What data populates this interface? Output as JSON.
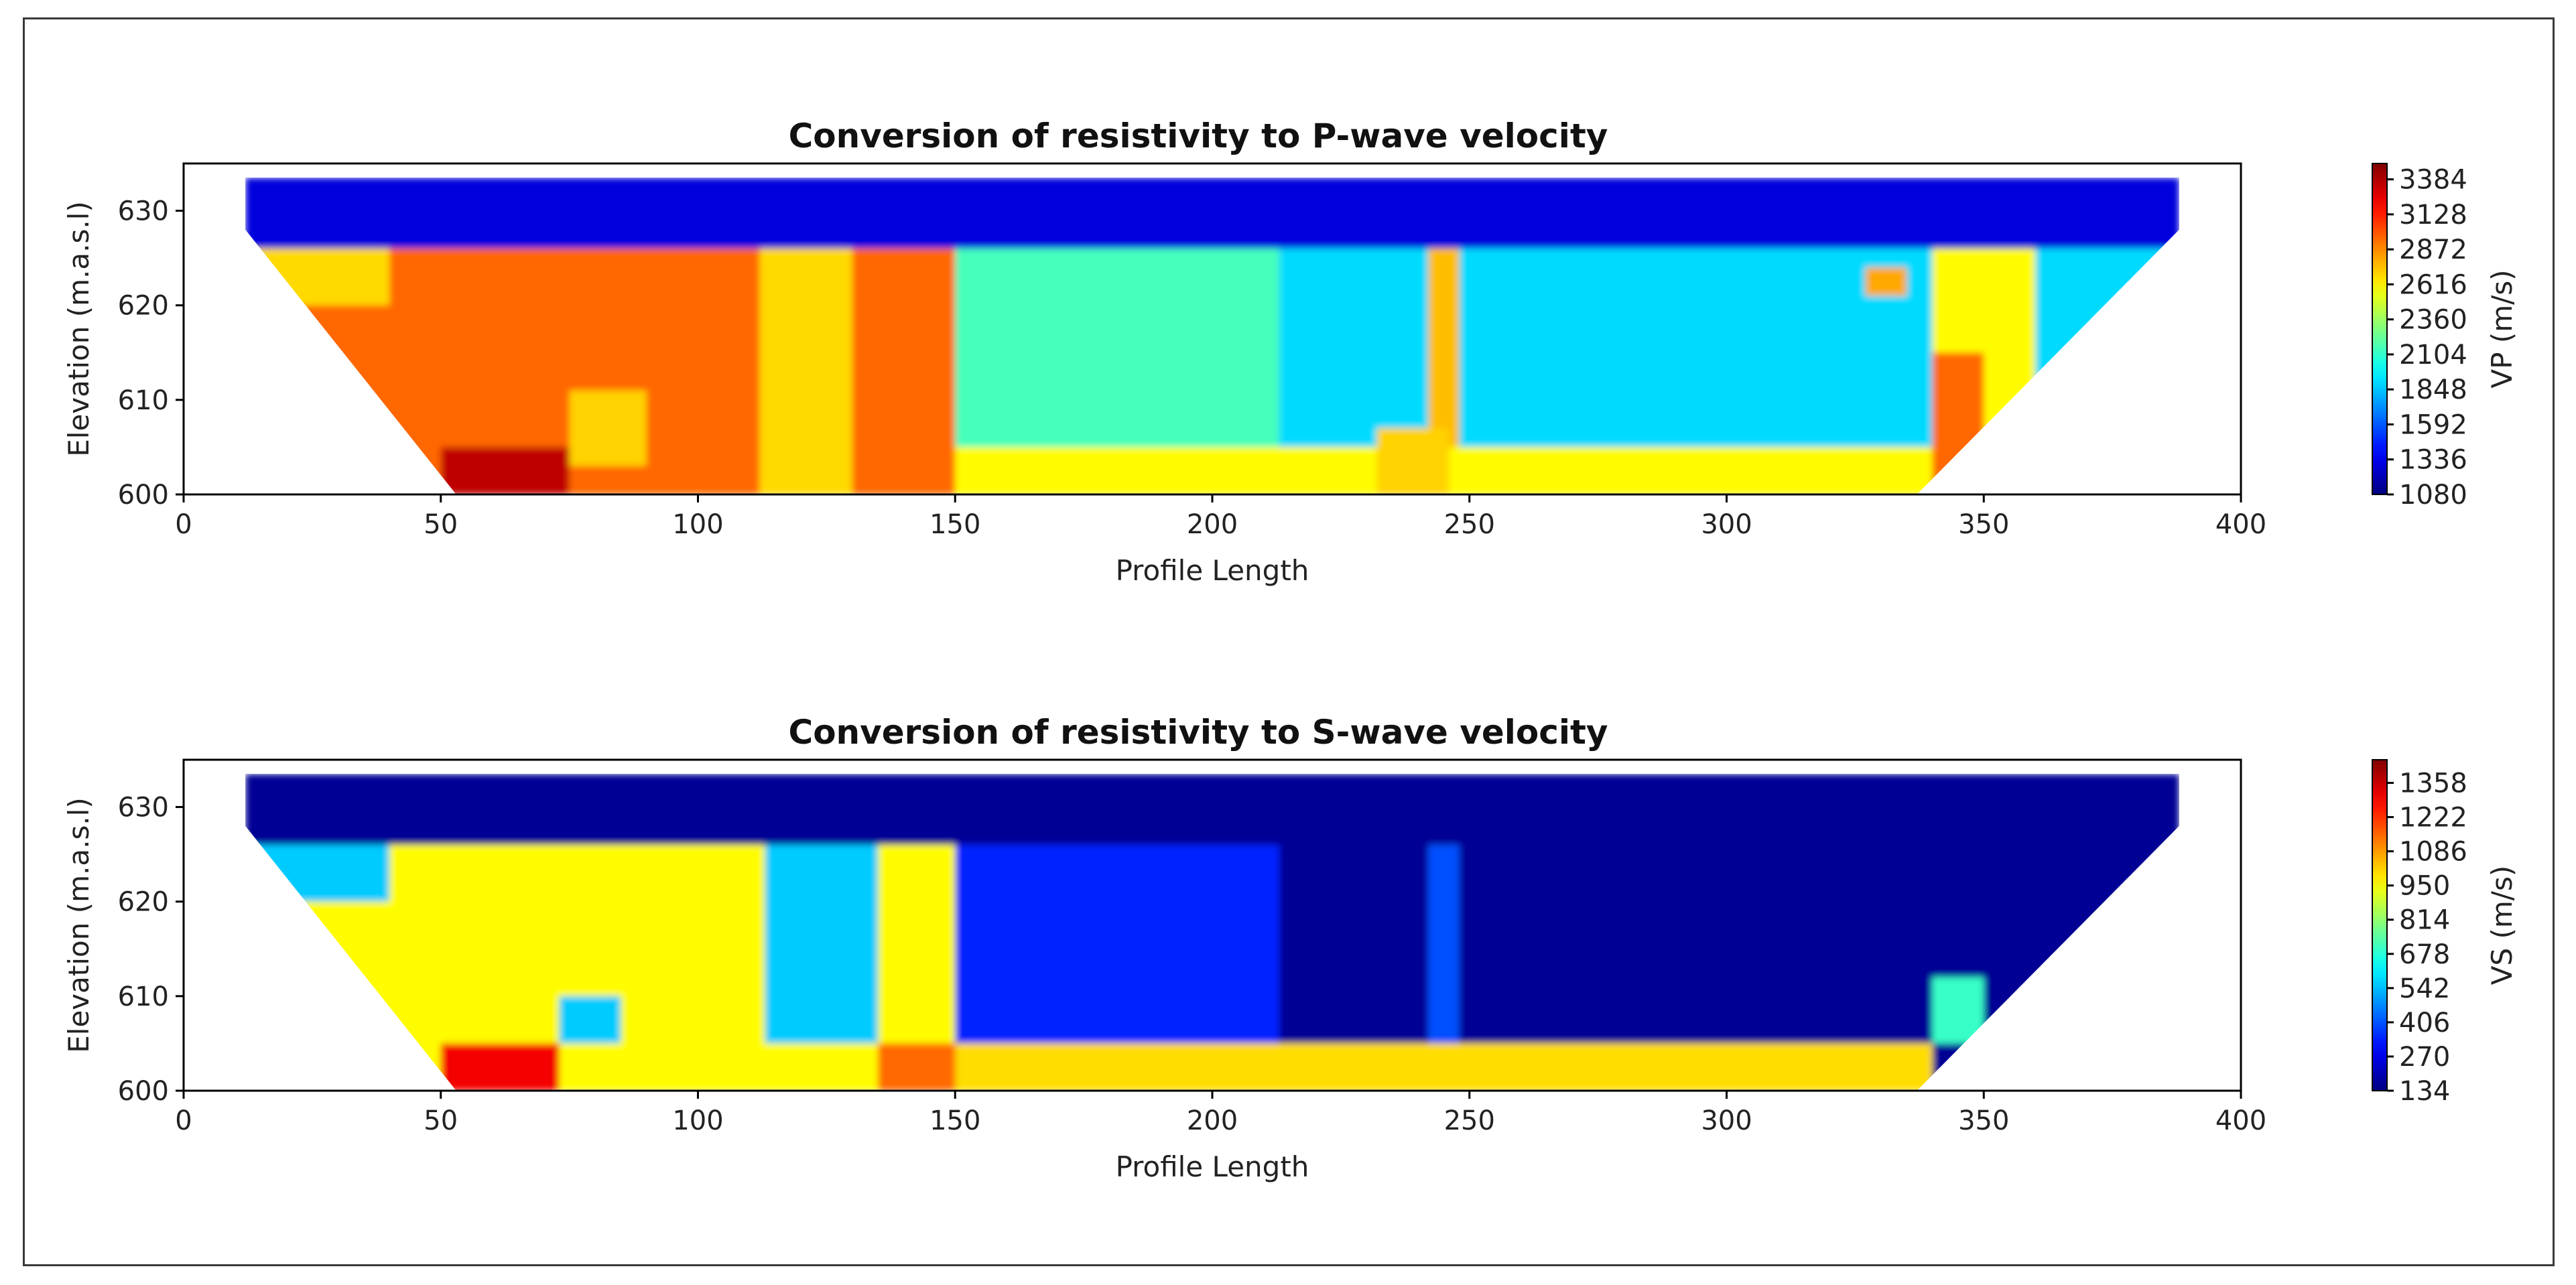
{
  "chart_data": [
    {
      "type": "heatmap",
      "title": "Conversion of resistivity to P-wave velocity",
      "xlabel": "Profile Length",
      "ylabel": "Elevation (m.a.s.l)",
      "xlim": [
        0,
        400
      ],
      "ylim": [
        600,
        635
      ],
      "xticks": [
        0,
        50,
        100,
        150,
        200,
        250,
        300,
        350,
        400
      ],
      "yticks": [
        600,
        610,
        620,
        630
      ],
      "colorbar": {
        "label": "VP (m/s)",
        "min": 1080,
        "max": 3500,
        "ticks": [
          1080,
          1336,
          1592,
          1848,
          2104,
          2360,
          2616,
          2872,
          3128,
          3384
        ]
      },
      "zones": [
        {
          "x0": 12,
          "x1": 388,
          "y0": 626,
          "y1": 633.5,
          "value": 1300
        },
        {
          "x0": 12,
          "x1": 150,
          "y0": 600,
          "y1": 626,
          "value": 2950
        },
        {
          "x0": 12,
          "x1": 40,
          "y0": 620,
          "y1": 626,
          "value": 2680
        },
        {
          "x0": 112,
          "x1": 130,
          "y0": 600,
          "y1": 626,
          "value": 2680
        },
        {
          "x0": 75,
          "x1": 90,
          "y0": 603,
          "y1": 611,
          "value": 2700
        },
        {
          "x0": 50,
          "x1": 75,
          "y0": 600,
          "y1": 605,
          "value": 3350
        },
        {
          "x0": 150,
          "x1": 213,
          "y0": 605,
          "y1": 626,
          "value": 2150
        },
        {
          "x0": 213,
          "x1": 388,
          "y0": 605,
          "y1": 626,
          "value": 1900
        },
        {
          "x0": 150,
          "x1": 340,
          "y0": 600,
          "y1": 605,
          "value": 2600
        },
        {
          "x0": 242,
          "x1": 248,
          "y0": 605,
          "y1": 626,
          "value": 2750
        },
        {
          "x0": 232,
          "x1": 246,
          "y0": 600,
          "y1": 607,
          "value": 2700
        },
        {
          "x0": 327,
          "x1": 335,
          "y0": 621,
          "y1": 624,
          "value": 2800
        },
        {
          "x0": 340,
          "x1": 360,
          "y0": 600,
          "y1": 626,
          "value": 2600
        },
        {
          "x0": 340,
          "x1": 350,
          "y0": 600,
          "y1": 615,
          "value": 2950
        }
      ]
    },
    {
      "type": "heatmap",
      "title": "Conversion of resistivity to S-wave velocity",
      "xlabel": "Profile Length",
      "ylabel": "Elevation (m.a.s.l)",
      "xlim": [
        0,
        400
      ],
      "ylim": [
        600,
        635
      ],
      "xticks": [
        0,
        50,
        100,
        150,
        200,
        250,
        300,
        350,
        400
      ],
      "yticks": [
        600,
        610,
        620,
        630
      ],
      "colorbar": {
        "label": "VS (m/s)",
        "min": 134,
        "max": 1450,
        "ticks": [
          134,
          270,
          406,
          542,
          678,
          814,
          950,
          1086,
          1222,
          1358
        ]
      },
      "zones": [
        {
          "x0": 12,
          "x1": 388,
          "y0": 600,
          "y1": 633.5,
          "value": 160
        },
        {
          "x0": 12,
          "x1": 150,
          "y0": 600,
          "y1": 626,
          "value": 960
        },
        {
          "x0": 12,
          "x1": 40,
          "y0": 620,
          "y1": 626,
          "value": 560
        },
        {
          "x0": 113,
          "x1": 135,
          "y0": 605,
          "y1": 626,
          "value": 560
        },
        {
          "x0": 73,
          "x1": 85,
          "y0": 605,
          "y1": 610,
          "value": 560
        },
        {
          "x0": 50,
          "x1": 73,
          "y0": 600,
          "y1": 605,
          "value": 1300
        },
        {
          "x0": 150,
          "x1": 213,
          "y0": 605,
          "y1": 626,
          "value": 340
        },
        {
          "x0": 242,
          "x1": 248,
          "y0": 605,
          "y1": 626,
          "value": 400
        },
        {
          "x0": 150,
          "x1": 340,
          "y0": 600,
          "y1": 605,
          "value": 1000
        },
        {
          "x0": 135,
          "x1": 150,
          "y0": 600,
          "y1": 605,
          "value": 1150
        },
        {
          "x0": 340,
          "x1": 350,
          "y0": 605,
          "y1": 612,
          "value": 700
        }
      ]
    }
  ]
}
